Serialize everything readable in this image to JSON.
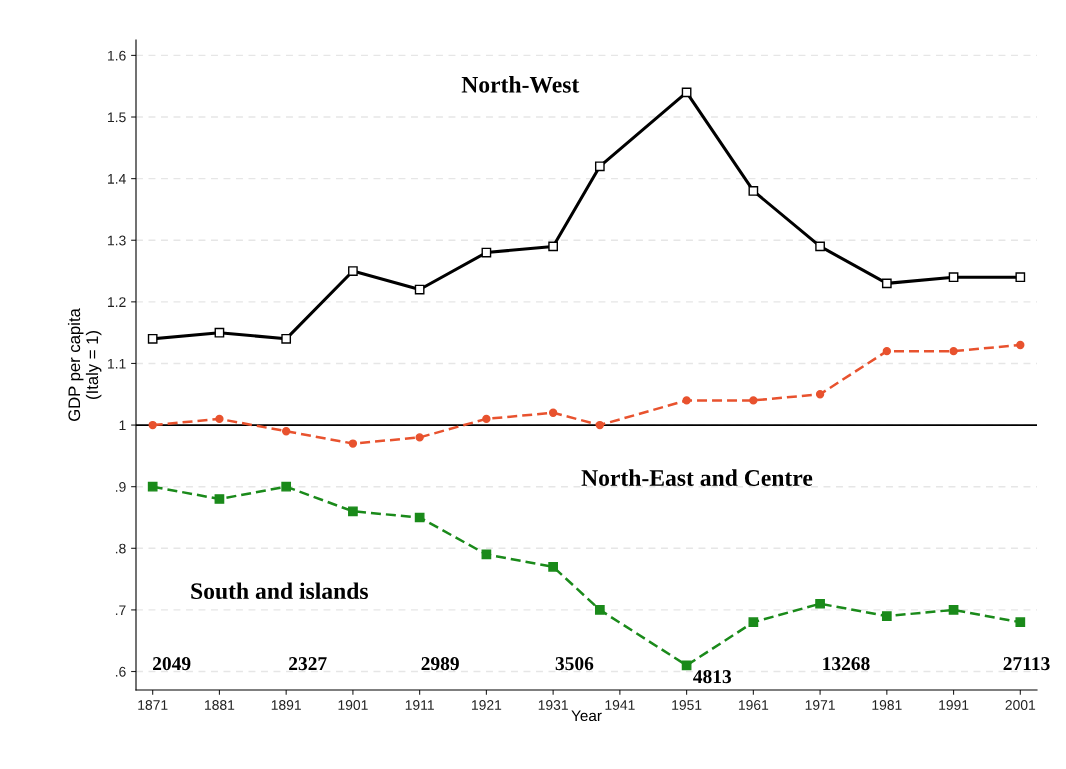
{
  "chart_data": {
    "type": "line",
    "xlabel": "Year",
    "ylabel": "GDP per capita\n(Italy = 1)",
    "x": [
      1871,
      1881,
      1891,
      1901,
      1911,
      1921,
      1931,
      1938,
      1951,
      1961,
      1971,
      1981,
      1991,
      2001
    ],
    "series": [
      {
        "name": "North-West",
        "color": "#000000",
        "marker": "square",
        "line_style": "solid",
        "values": [
          1.14,
          1.15,
          1.14,
          1.25,
          1.22,
          1.28,
          1.29,
          1.42,
          1.54,
          1.38,
          1.29,
          1.23,
          1.24,
          1.24
        ]
      },
      {
        "name": "North-East and Centre",
        "color": "#e8522e",
        "marker": "circle",
        "line_style": "dashed",
        "values": [
          1.0,
          1.01,
          0.99,
          0.97,
          0.98,
          1.01,
          1.02,
          1.0,
          1.04,
          1.04,
          1.05,
          1.12,
          1.12,
          1.13
        ]
      },
      {
        "name": "South and islands",
        "color": "#1a8a1a",
        "marker": "square",
        "line_style": "dashed",
        "values": [
          0.9,
          0.88,
          0.9,
          0.86,
          0.85,
          0.79,
          0.77,
          0.7,
          0.61,
          0.68,
          0.71,
          0.69,
          0.7,
          0.68
        ]
      }
    ],
    "xlim": [
      1868.5,
      2003.5
    ],
    "xticks": [
      1871,
      1881,
      1891,
      1901,
      1911,
      1921,
      1931,
      1941,
      1951,
      1961,
      1971,
      1981,
      1991,
      2001
    ],
    "ylim": [
      0.57,
      1.625
    ],
    "yticks": [
      {
        "value": 0.6,
        "label": ".6"
      },
      {
        "value": 0.7,
        "label": ".7"
      },
      {
        "value": 0.8,
        "label": ".8"
      },
      {
        "value": 0.9,
        "label": ".9"
      },
      1,
      1.1,
      1.2,
      1.3,
      1.4,
      1.5,
      1.6
    ],
    "grid": "y",
    "legend": false,
    "ref_lines": [
      {
        "axis": "y",
        "value": 1,
        "color": "#000000",
        "line_style": "solid"
      }
    ],
    "annotations": [
      "2049",
      "2327",
      "2989",
      "3506",
      "4813",
      "13268",
      "27113"
    ]
  }
}
